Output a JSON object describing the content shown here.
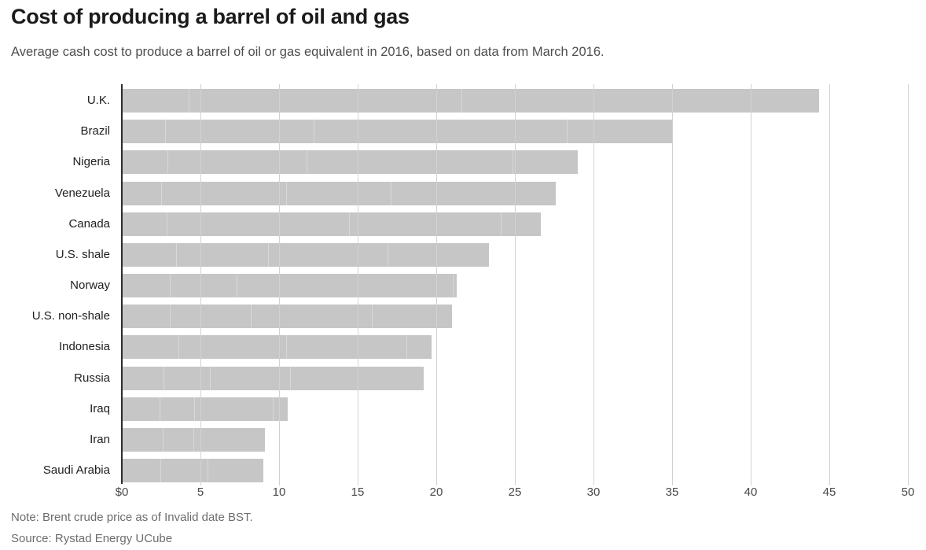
{
  "header": {
    "title": "Cost of producing a barrel of oil and gas",
    "subtitle": "Average cash cost to produce a barrel of oil or gas equivalent in 2016, based on data from March 2016."
  },
  "footer": {
    "note": "Note: Brent crude price as of Invalid date BST.",
    "source": "Source: Rystad Energy UCube"
  },
  "chart_data": {
    "type": "bar",
    "orientation": "horizontal",
    "stacked": true,
    "title": "Cost of producing a barrel of oil and gas",
    "subtitle": "Average cash cost to produce a barrel of oil or gas equivalent in 2016, based on data from March 2016.",
    "categories": [
      "U.K.",
      "Brazil",
      "Nigeria",
      "Venezuela",
      "Canada",
      "U.S. shale",
      "Norway",
      "U.S. non-shale",
      "Indonesia",
      "Russia",
      "Iraq",
      "Iran",
      "Saudi Arabia"
    ],
    "totals": [
      44.33,
      34.99,
      28.99,
      27.62,
      26.64,
      23.35,
      21.31,
      20.99,
      19.71,
      19.21,
      10.57,
      9.08,
      8.98
    ],
    "segments": [
      [
        4.3,
        17.36,
        22.67
      ],
      [
        2.8,
        9.45,
        16.09,
        6.65
      ],
      [
        2.97,
        8.81,
        13.1,
        4.11
      ],
      [
        2.54,
        7.94,
        6.66,
        10.48
      ],
      [
        2.92,
        11.56,
        9.69,
        2.47
      ],
      [
        3.52,
        5.85,
        7.56,
        6.42
      ],
      [
        3.12,
        4.24,
        13.76,
        0.19
      ],
      [
        3.11,
        5.15,
        7.7,
        5.03
      ],
      [
        3.63,
        6.87,
        7.65,
        1.56
      ],
      [
        2.69,
        2.98,
        5.1,
        8.44
      ],
      [
        2.47,
        2.16,
        5.03,
        0.91
      ],
      [
        2.67,
        1.94,
        4.47
      ],
      [
        2.49,
        3.0,
        3.49
      ]
    ],
    "axis": {
      "xlim": [
        0,
        50
      ],
      "ticks": [
        0,
        5,
        10,
        15,
        20,
        25,
        30,
        35,
        40,
        45,
        50
      ],
      "tick_labels": [
        "$0",
        "5",
        "10",
        "15",
        "20",
        "25",
        "30",
        "35",
        "40",
        "45",
        "50"
      ],
      "grid": true,
      "unit_prefix": "$"
    },
    "note": "Note: Brent crude price as of Invalid date BST.",
    "source": "Source: Rystad Energy UCube",
    "colors": {
      "bar": "#c6c6c6",
      "segment_divider": "#d8d8d8",
      "gridline": "#d2d2d2",
      "axis_line": "#2d2d2d",
      "background": "#ffffff"
    }
  }
}
